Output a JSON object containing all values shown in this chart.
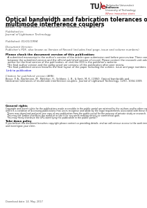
{
  "bg_color": "#ffffff",
  "logo_sub1": "Technische Universiteit",
  "logo_sub2": "Eindhoven",
  "logo_sub3": "University of Technology",
  "logo_tagline": "Where innovation starts",
  "title_line1": "Optical bandwidth and fabrication tolerances of",
  "title_line2": "multimode interference couplers",
  "authors": "Besse, P.A.; Bachmann, M.; Melchior, H.; Soldano, L.B.; Smit, M.K.",
  "pub_label": "Published in:",
  "pub_venue": "Journal of Lightwave Technology",
  "pub_date_label": "Published: 01/01/1994",
  "doc_version_label": "Document Version:",
  "doc_version_text": "Publisher's PDF, also known as Version of Record (includes final page, issue and volume numbers)",
  "check_label": "Please check the document version of this publication:",
  "bullet1a": "A submitted manuscript is the author's version of the article upon submission and before peer-review. There can be important differences",
  "bullet1b": "between the submitted version and the official published version of record. Please contact the research unit advisor to consult the",
  "bullet1c": "author for the final version of the publication, or visit the DOI to the publisher's website.",
  "bullet2": "The final author version and the galley proof are versions of this publication after peer review.",
  "bullet3": "The final published version features the final layout of the paper including the volume, issue and page numbers.",
  "link_text": "Link to publication",
  "citation_label": "Citation for published version (APA):",
  "citation1": "Besse, P. A., Bachmann, M., Melchior, H., Soldano, L. B., & Smit, M. K. (1994). Optical bandwidth and",
  "citation2": "fabrication tolerances of multimode interference couplers. Journal of Lightwave Technology, 12(6), 1004-1009.",
  "general_rights_label": "General rights",
  "gr_text1": "Copyright and moral rights for the publications made accessible in the public portal are retained by the authors and/or other copyright owners",
  "gr_text2": "and it is a condition of accessing publications that users recognise and abide by the legal requirements associated with these rights.",
  "rb1": "Users may download and print one copy of any publication from the public portal for the purpose of private study or research.",
  "rb2": "You may not further distribute the material or use it for any profit-making activity or commercial gain.",
  "rb3": "You may freely distribute the URL identifying the publication in the public portal ?",
  "takedown_label": "Take-down policy",
  "td_text1": "If you believe this document breaches copyright please contact us providing details, and we will remove access to the work immediately",
  "td_text2": "and investigate your claim.",
  "download_text": "Download date: 14. May. 2017",
  "accent_color": "#c1272d",
  "link_color": "#0000cc",
  "line_color": "#bbbbbb",
  "text_color": "#333333",
  "label_color": "#555555"
}
